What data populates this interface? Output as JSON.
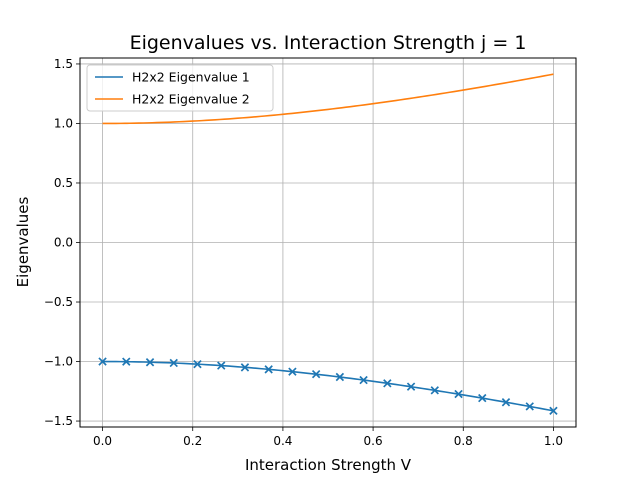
{
  "chart_data": {
    "type": "line",
    "title": "Eigenvalues vs. Interaction Strength j = 1",
    "xlabel": "Interaction Strength V",
    "ylabel": "Eigenvalues",
    "xlim": [
      -0.05,
      1.05
    ],
    "ylim": [
      -1.55,
      1.55
    ],
    "xticks": [
      0.0,
      0.2,
      0.4,
      0.6,
      0.8,
      1.0
    ],
    "xtick_labels": [
      "0.0",
      "0.2",
      "0.4",
      "0.6",
      "0.8",
      "1.0"
    ],
    "yticks": [
      -1.5,
      -1.0,
      -0.5,
      0.0,
      0.5,
      1.0,
      1.5
    ],
    "ytick_labels": [
      "−1.5",
      "−1.0",
      "−0.5",
      "0.0",
      "0.5",
      "1.0",
      "1.5"
    ],
    "grid": true,
    "legend_position": "top-left",
    "series": [
      {
        "name": "H2x2 Eigenvalue 1",
        "color": "#1f77b4",
        "curve": "-sqrt(1+x^2)",
        "markers": "x",
        "marker_x": [
          0.0,
          0.0526,
          0.1053,
          0.1579,
          0.2105,
          0.2632,
          0.3158,
          0.3684,
          0.4211,
          0.4737,
          0.5263,
          0.5789,
          0.6316,
          0.6842,
          0.7368,
          0.7895,
          0.8421,
          0.8947,
          0.9474,
          1.0
        ],
        "marker_y": [
          -1.0,
          -1.001,
          -1.006,
          -1.012,
          -1.022,
          -1.034,
          -1.049,
          -1.066,
          -1.085,
          -1.106,
          -1.13,
          -1.156,
          -1.183,
          -1.211,
          -1.242,
          -1.273,
          -1.307,
          -1.342,
          -1.377,
          -1.414
        ]
      },
      {
        "name": "H2x2 Eigenvalue 2",
        "color": "#ff7f0e",
        "curve": "sqrt(1+x^2)",
        "markers": "none"
      }
    ]
  }
}
